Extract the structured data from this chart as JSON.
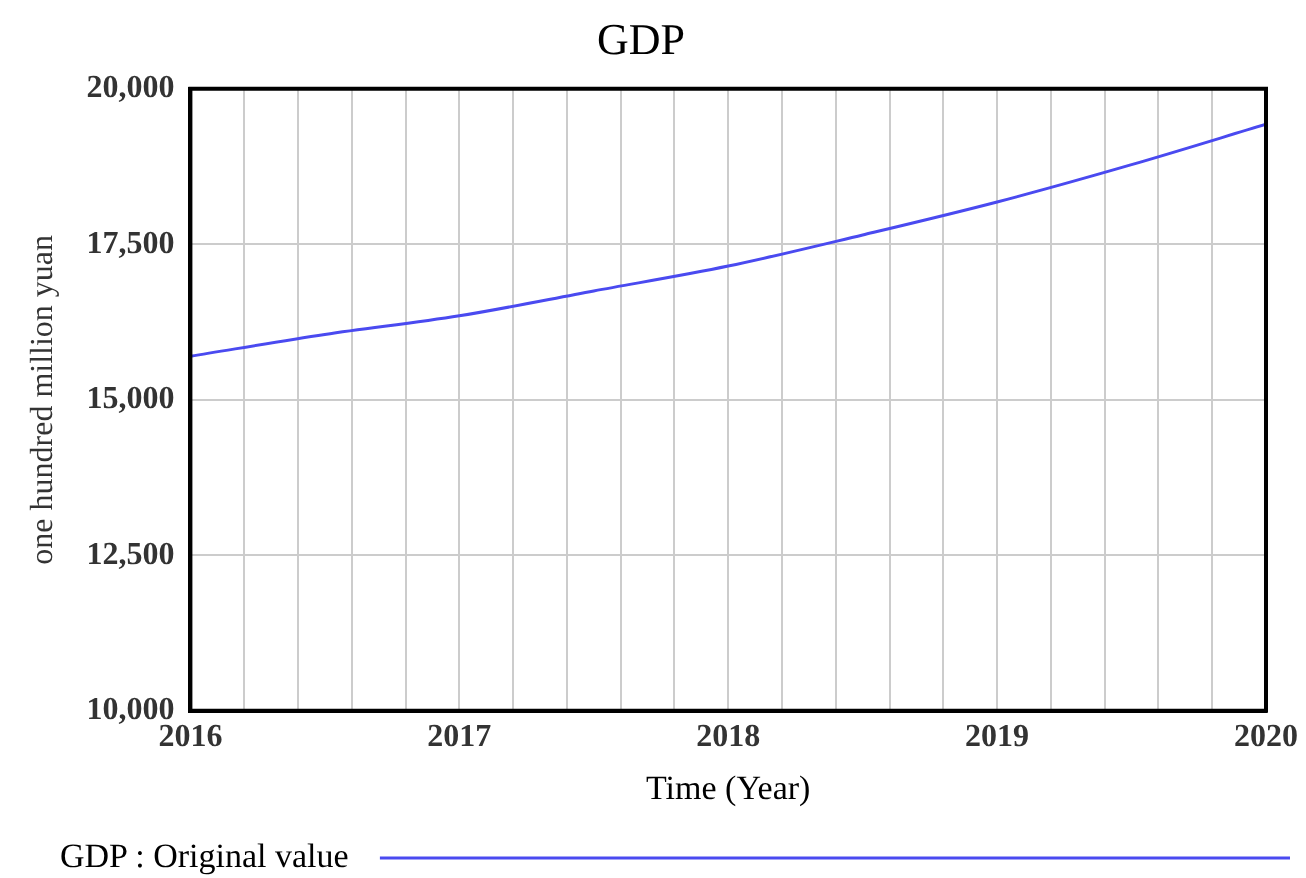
{
  "chart_data": {
    "type": "line",
    "title": "GDP",
    "xlabel": "Time (Year)",
    "ylabel": "one hundred million yuan",
    "x": [
      2016,
      2016.5,
      2017,
      2017.5,
      2018,
      2018.5,
      2019,
      2019.5,
      2020
    ],
    "series": [
      {
        "name": "GDP : Original value",
        "color": "#4a4af0",
        "values": [
          15700,
          16050,
          16350,
          16750,
          17150,
          17650,
          18180,
          18780,
          19430
        ]
      }
    ],
    "xlim": [
      2016,
      2020
    ],
    "xticks": [
      2016,
      {
        "value": 2016.2,
        "label": null
      },
      {
        "value": 2016.4,
        "label": null
      },
      {
        "value": 2016.6,
        "label": null
      },
      {
        "value": 2016.8,
        "label": null
      },
      2017,
      {
        "value": 2017.2,
        "label": null
      },
      {
        "value": 2017.4,
        "label": null
      },
      {
        "value": 2017.6,
        "label": null
      },
      {
        "value": 2017.8,
        "label": null
      },
      2018,
      {
        "value": 2018.2,
        "label": null
      },
      {
        "value": 2018.4,
        "label": null
      },
      {
        "value": 2018.6,
        "label": null
      },
      {
        "value": 2018.8,
        "label": null
      },
      2019,
      {
        "value": 2019.2,
        "label": null
      },
      {
        "value": 2019.4,
        "label": null
      },
      {
        "value": 2019.6,
        "label": null
      },
      {
        "value": 2019.8,
        "label": null
      },
      2020
    ],
    "ylim": [
      10000,
      20000
    ],
    "yticks": [
      {
        "value": 10000,
        "label": "10,000"
      },
      {
        "value": 12500,
        "label": "12,500"
      },
      {
        "value": 15000,
        "label": "15,000"
      },
      {
        "value": 17500,
        "label": "17,500"
      },
      {
        "value": 20000,
        "label": "20,000"
      }
    ],
    "grid": true,
    "legend": "bottom",
    "marker": "none",
    "line_style": "solid"
  }
}
